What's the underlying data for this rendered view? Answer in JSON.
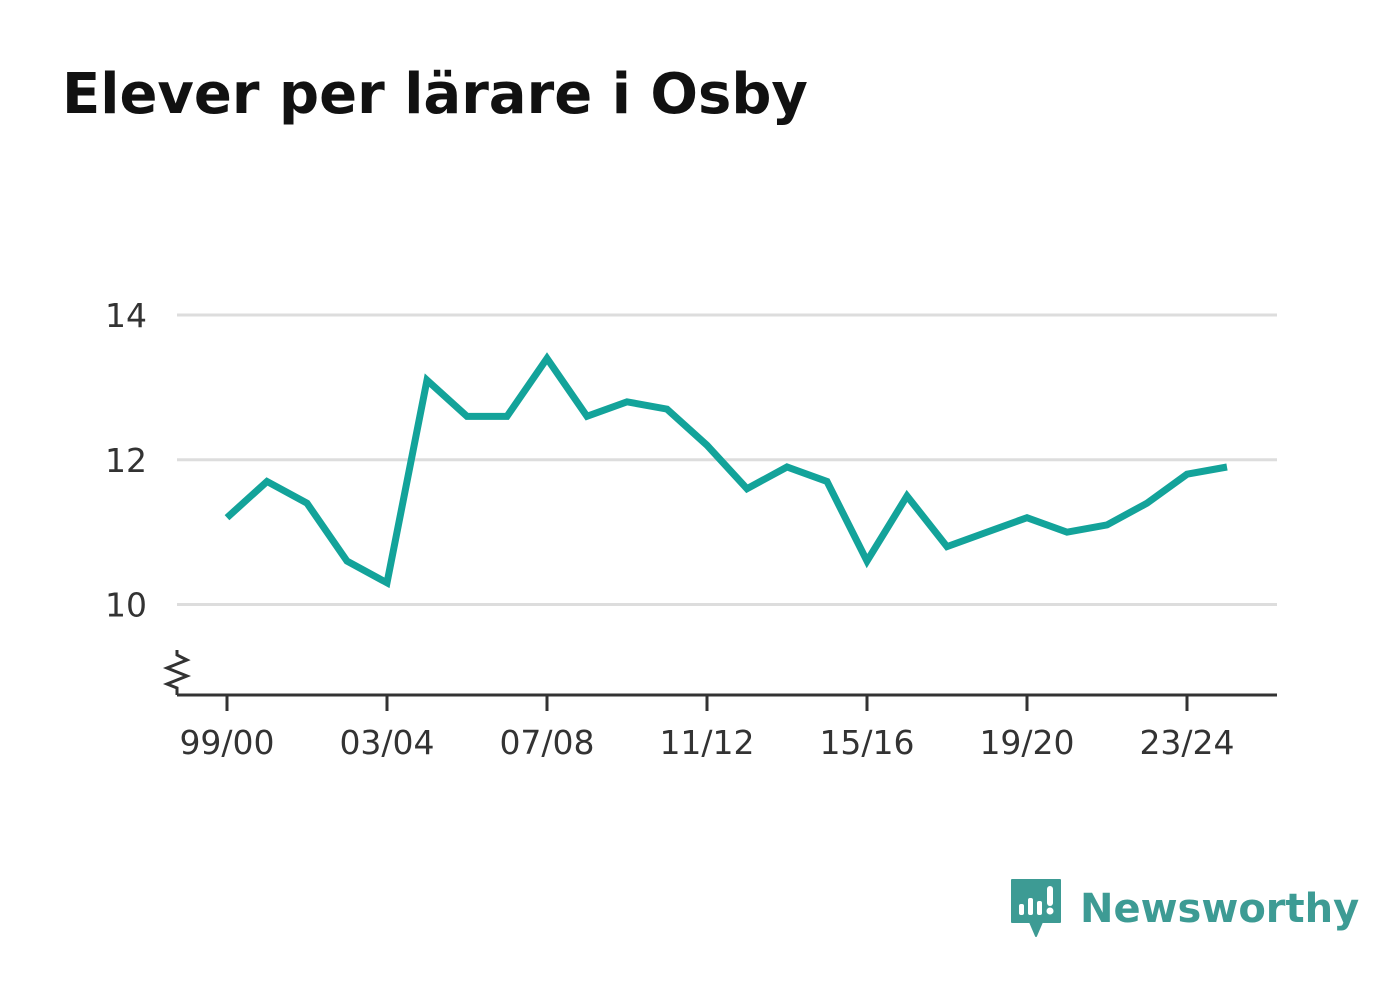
{
  "title": "Elever per lärare i Osby",
  "brand": {
    "name": "Newsworthy",
    "icon": "newsworthy-logo-icon",
    "color": "#3d9b94"
  },
  "chart_data": {
    "type": "line",
    "title": "Elever per lärare i Osby",
    "xlabel": "",
    "ylabel": "",
    "x": [
      "99/00",
      "00/01",
      "01/02",
      "02/03",
      "03/04",
      "04/05",
      "05/06",
      "06/07",
      "07/08",
      "08/09",
      "09/10",
      "10/11",
      "11/12",
      "12/13",
      "13/14",
      "14/15",
      "15/16",
      "16/17",
      "17/18",
      "18/19",
      "19/20",
      "20/21",
      "21/22",
      "22/23",
      "23/24",
      "24/25"
    ],
    "x_tick_labels": [
      "99/00",
      "03/04",
      "07/08",
      "11/12",
      "15/16",
      "19/20",
      "23/24"
    ],
    "series": [
      {
        "values": [
          11.2,
          11.7,
          11.4,
          10.6,
          10.3,
          13.1,
          12.6,
          12.6,
          13.4,
          12.6,
          12.8,
          12.7,
          12.2,
          11.6,
          11.9,
          11.7,
          10.6,
          11.5,
          10.8,
          11.0,
          11.2,
          11.0,
          11.1,
          11.4,
          11.8,
          11.9
        ],
        "color": "#13a39a"
      }
    ],
    "y_ticks": [
      10,
      12,
      14
    ],
    "ylim": [
      8.75,
      14
    ],
    "axis_break": true,
    "grid": true,
    "gridline_color": "#dddddd",
    "axis_color": "#333333"
  }
}
